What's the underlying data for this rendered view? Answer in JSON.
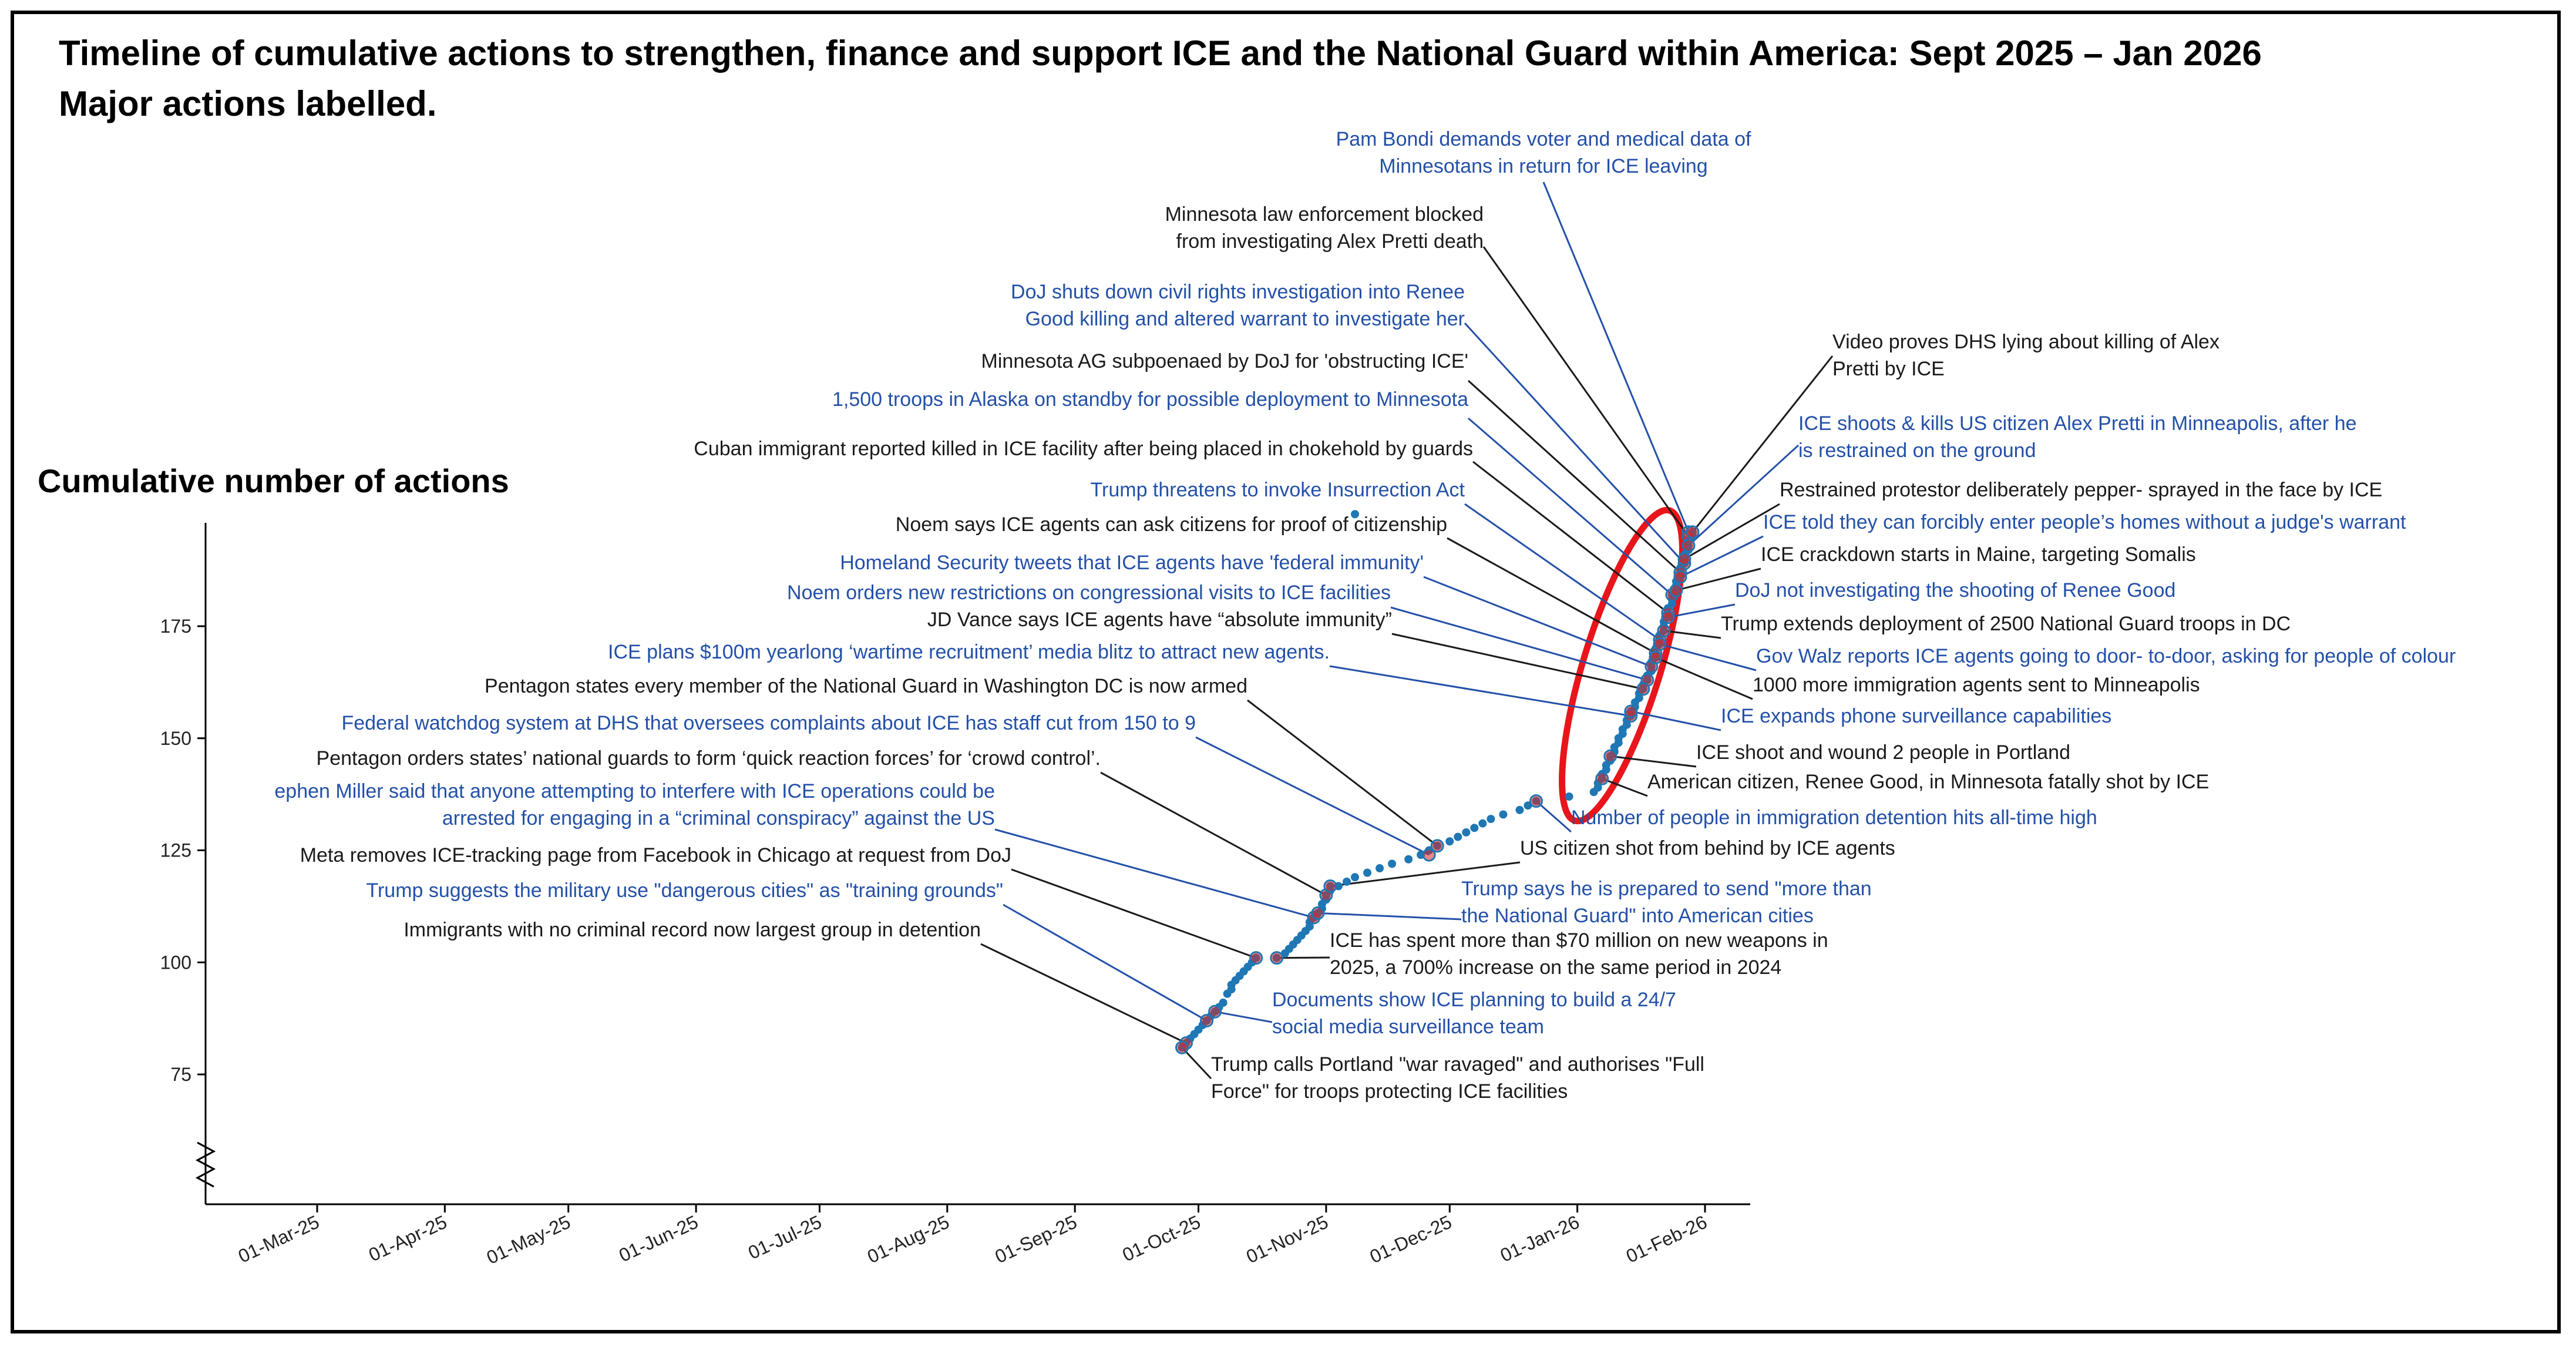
{
  "title_line1": "Timeline of cumulative actions to strengthen, finance and support ICE and the National Guard within America: Sept 2025 – Jan 2026",
  "title_line2": "Major actions labelled.",
  "colors": {
    "point": "#1f77b4",
    "major_point": "#d62728",
    "ellipse": "#e8151b",
    "black_text": "#1a1a1a",
    "blue_text": "#2350a8"
  },
  "chart_data": {
    "type": "scatter",
    "ylabel": "Cumulative number of actions",
    "xlabel": "",
    "y_ticks": [
      75,
      100,
      125,
      150,
      175
    ],
    "ylim": [
      47,
      200
    ],
    "x_ticks": [
      "01-Mar-25",
      "01-Apr-25",
      "01-May-25",
      "01-Jun-25",
      "01-Jul-25",
      "01-Aug-25",
      "01-Sep-25",
      "01-Oct-25",
      "01-Nov-25",
      "01-Dec-25",
      "01-Jan-26",
      "01-Feb-26"
    ],
    "y_axis_break": true,
    "highlight_ellipse": "Jan 2026 cluster",
    "points": [
      {
        "x": "2025-09-27",
        "y": 81
      },
      {
        "x": "2025-09-28",
        "y": 82
      },
      {
        "x": "2025-09-29",
        "y": 83
      },
      {
        "x": "2025-09-30",
        "y": 84
      },
      {
        "x": "2025-10-01",
        "y": 85
      },
      {
        "x": "2025-10-02",
        "y": 86
      },
      {
        "x": "2025-10-03",
        "y": 87
      },
      {
        "x": "2025-10-04",
        "y": 88
      },
      {
        "x": "2025-10-05",
        "y": 89
      },
      {
        "x": "2025-10-06",
        "y": 90
      },
      {
        "x": "2025-10-07",
        "y": 91
      },
      {
        "x": "2025-10-08",
        "y": 93
      },
      {
        "x": "2025-10-09",
        "y": 94
      },
      {
        "x": "2025-10-09",
        "y": 95
      },
      {
        "x": "2025-10-10",
        "y": 96
      },
      {
        "x": "2025-10-11",
        "y": 97
      },
      {
        "x": "2025-10-12",
        "y": 98
      },
      {
        "x": "2025-10-13",
        "y": 99
      },
      {
        "x": "2025-10-14",
        "y": 100
      },
      {
        "x": "2025-10-15",
        "y": 101
      },
      {
        "x": "2025-10-20",
        "y": 101
      },
      {
        "x": "2025-10-22",
        "y": 102
      },
      {
        "x": "2025-10-23",
        "y": 103
      },
      {
        "x": "2025-10-24",
        "y": 104
      },
      {
        "x": "2025-10-25",
        "y": 105
      },
      {
        "x": "2025-10-26",
        "y": 106
      },
      {
        "x": "2025-10-27",
        "y": 107
      },
      {
        "x": "2025-10-28",
        "y": 108
      },
      {
        "x": "2025-10-28",
        "y": 109
      },
      {
        "x": "2025-10-29",
        "y": 110
      },
      {
        "x": "2025-10-30",
        "y": 111
      },
      {
        "x": "2025-10-31",
        "y": 112
      },
      {
        "x": "2025-10-31",
        "y": 113
      },
      {
        "x": "2025-11-01",
        "y": 114
      },
      {
        "x": "2025-11-01",
        "y": 115
      },
      {
        "x": "2025-11-02",
        "y": 116
      },
      {
        "x": "2025-11-02",
        "y": 117
      },
      {
        "x": "2025-11-04",
        "y": 117
      },
      {
        "x": "2025-11-06",
        "y": 118
      },
      {
        "x": "2025-11-08",
        "y": 119
      },
      {
        "x": "2025-11-11",
        "y": 120
      },
      {
        "x": "2025-11-14",
        "y": 121
      },
      {
        "x": "2025-11-17",
        "y": 122
      },
      {
        "x": "2025-11-21",
        "y": 123
      },
      {
        "x": "2025-11-24",
        "y": 124
      },
      {
        "x": "2025-11-26",
        "y": 125
      },
      {
        "x": "2025-11-28",
        "y": 126
      },
      {
        "x": "2025-12-01",
        "y": 127
      },
      {
        "x": "2025-12-03",
        "y": 128
      },
      {
        "x": "2025-12-05",
        "y": 129
      },
      {
        "x": "2025-12-07",
        "y": 130
      },
      {
        "x": "2025-12-09",
        "y": 131
      },
      {
        "x": "2025-12-11",
        "y": 132
      },
      {
        "x": "2025-12-14",
        "y": 133
      },
      {
        "x": "2025-12-18",
        "y": 134
      },
      {
        "x": "2025-12-20",
        "y": 135
      },
      {
        "x": "2025-12-22",
        "y": 136
      },
      {
        "x": "2025-12-30",
        "y": 137
      },
      {
        "x": "2026-01-05",
        "y": 138
      },
      {
        "x": "2026-01-06",
        "y": 139
      },
      {
        "x": "2026-01-06",
        "y": 140
      },
      {
        "x": "2026-01-07",
        "y": 141
      },
      {
        "x": "2026-01-07",
        "y": 142
      },
      {
        "x": "2026-01-08",
        "y": 143
      },
      {
        "x": "2026-01-08",
        "y": 144
      },
      {
        "x": "2026-01-09",
        "y": 145
      },
      {
        "x": "2026-01-09",
        "y": 146
      },
      {
        "x": "2026-01-10",
        "y": 147
      },
      {
        "x": "2026-01-10",
        "y": 148
      },
      {
        "x": "2026-01-11",
        "y": 149
      },
      {
        "x": "2026-01-11",
        "y": 150
      },
      {
        "x": "2026-01-12",
        "y": 151
      },
      {
        "x": "2026-01-12",
        "y": 152
      },
      {
        "x": "2026-01-13",
        "y": 153
      },
      {
        "x": "2026-01-13",
        "y": 154
      },
      {
        "x": "2026-01-14",
        "y": 155
      },
      {
        "x": "2026-01-14",
        "y": 156
      },
      {
        "x": "2026-01-15",
        "y": 157
      },
      {
        "x": "2026-01-15",
        "y": 158
      },
      {
        "x": "2026-01-16",
        "y": 159
      },
      {
        "x": "2026-01-16",
        "y": 160
      },
      {
        "x": "2026-01-17",
        "y": 161
      },
      {
        "x": "2026-01-17",
        "y": 162
      },
      {
        "x": "2026-01-18",
        "y": 163
      },
      {
        "x": "2026-01-18",
        "y": 164
      },
      {
        "x": "2026-01-19",
        "y": 165
      },
      {
        "x": "2026-01-19",
        "y": 166
      },
      {
        "x": "2026-01-19",
        "y": 167
      },
      {
        "x": "2026-01-20",
        "y": 168
      },
      {
        "x": "2026-01-20",
        "y": 169
      },
      {
        "x": "2026-01-20",
        "y": 170
      },
      {
        "x": "2026-01-21",
        "y": 171
      },
      {
        "x": "2026-01-21",
        "y": 172
      },
      {
        "x": "2026-01-21",
        "y": 173
      },
      {
        "x": "2026-01-22",
        "y": 174
      },
      {
        "x": "2026-01-22",
        "y": 175
      },
      {
        "x": "2026-01-22",
        "y": 176
      },
      {
        "x": "2026-01-23",
        "y": 177
      },
      {
        "x": "2026-01-23",
        "y": 178
      },
      {
        "x": "2026-01-23",
        "y": 179
      },
      {
        "x": "2026-01-24",
        "y": 180
      },
      {
        "x": "2026-01-24",
        "y": 181
      },
      {
        "x": "2026-01-24",
        "y": 182
      },
      {
        "x": "2026-01-25",
        "y": 183
      },
      {
        "x": "2026-01-25",
        "y": 184
      },
      {
        "x": "2026-01-25",
        "y": 185
      },
      {
        "x": "2026-01-26",
        "y": 186
      },
      {
        "x": "2026-01-26",
        "y": 187
      },
      {
        "x": "2026-01-26",
        "y": 188
      },
      {
        "x": "2026-01-27",
        "y": 189
      },
      {
        "x": "2026-01-27",
        "y": 190
      },
      {
        "x": "2026-01-27",
        "y": 191
      },
      {
        "x": "2026-01-28",
        "y": 192
      },
      {
        "x": "2026-01-28",
        "y": 193
      },
      {
        "x": "2026-01-28",
        "y": 194
      },
      {
        "x": "2026-01-29",
        "y": 195
      },
      {
        "x": "2026-01-29",
        "y": 196
      },
      {
        "x": "2025-11-08",
        "y": 200
      }
    ],
    "annotations": [
      {
        "text": [
          "Pam Bondi demands voter and medical data of",
          "Minnesotans in return for ICE leaving"
        ],
        "color": "blue",
        "x": "2026-01-28",
        "y": 196
      },
      {
        "text": [
          "Minnesota law enforcement blocked",
          "from investigating Alex Pretti death"
        ],
        "color": "black",
        "x": "2026-01-28",
        "y": 195
      },
      {
        "text": [
          "DoJ shuts down civil rights investigation into Renee",
          "Good killing and altered warrant to investigate her"
        ],
        "color": "blue",
        "x": "2026-01-27",
        "y": 189
      },
      {
        "text": [
          "Minnesota AG subpoenaed by DoJ for 'obstructing ICE'"
        ],
        "color": "black",
        "x": "2026-01-26",
        "y": 187
      },
      {
        "text": [
          "1,500 troops in Alaska on standby for possible deployment to Minnesota"
        ],
        "color": "blue",
        "x": "2026-01-24",
        "y": 182
      },
      {
        "text": [
          "Cuban immigrant reported killed in ICE facility after being placed in chokehold by guards"
        ],
        "color": "black",
        "x": "2026-01-23",
        "y": 178
      },
      {
        "text": [
          "Trump threatens to invoke Insurrection Act"
        ],
        "color": "blue",
        "x": "2026-01-21",
        "y": 172
      },
      {
        "text": [
          "Noem says ICE agents can ask citizens for proof of citizenship"
        ],
        "color": "black",
        "x": "2026-01-20",
        "y": 169
      },
      {
        "text": [
          "Homeland Security tweets that ICE agents have 'federal immunity'"
        ],
        "color": "blue",
        "x": "2026-01-19",
        "y": 166
      },
      {
        "text": [
          "Noem orders new restrictions on congressional visits to ICE facilities"
        ],
        "color": "blue",
        "x": "2026-01-18",
        "y": 163
      },
      {
        "text": [
          "JD Vance says ICE agents have “absolute immunity”"
        ],
        "color": "black",
        "x": "2026-01-17",
        "y": 161
      },
      {
        "text": [
          "ICE plans $100m yearlong ‘wartime recruitment’ media blitz to attract new agents."
        ],
        "color": "blue",
        "x": "2026-01-14",
        "y": 155
      },
      {
        "text": [
          "Pentagon states every member of the National Guard in Washington DC is now armed"
        ],
        "color": "black",
        "x": "2025-11-28",
        "y": 126
      },
      {
        "text": [
          "Federal watchdog system at DHS that oversees complaints about ICE has staff cut from 150 to 9"
        ],
        "color": "blue",
        "x": "2025-11-26",
        "y": 124
      },
      {
        "text": [
          "Pentagon orders states’ national guards to form ‘quick reaction forces’ for ‘crowd control’."
        ],
        "color": "black",
        "x": "2025-11-01",
        "y": 115
      },
      {
        "text": [
          "ephen Miller said that anyone attempting to interfere with ICE operations could be",
          "arrested for engaging in a “criminal conspiracy” against the US"
        ],
        "color": "blue",
        "x": "2025-10-29",
        "y": 110
      },
      {
        "text": [
          "Meta removes ICE-tracking page from Facebook in Chicago at request from DoJ"
        ],
        "color": "black",
        "x": "2025-10-15",
        "y": 101
      },
      {
        "text": [
          "Trump suggests  the military use \"dangerous cities\" as \"training grounds\""
        ],
        "color": "blue",
        "x": "2025-10-03",
        "y": 87
      },
      {
        "text": [
          "Immigrants with no criminal record now largest group in detention"
        ],
        "color": "black",
        "x": "2025-09-28",
        "y": 82
      },
      {
        "text": [
          "Video proves DHS lying about killing of Alex",
          "Pretti by ICE"
        ],
        "color": "black",
        "x": "2026-01-29",
        "y": 196
      },
      {
        "text": [
          "ICE shoots & kills US citizen Alex Pretti in Minneapolis, after he",
          "is restrained on the ground"
        ],
        "color": "blue",
        "x": "2026-01-28",
        "y": 193
      },
      {
        "text": [
          "Restrained protestor  deliberately pepper- sprayed in the face by ICE"
        ],
        "color": "black",
        "x": "2026-01-27",
        "y": 190
      },
      {
        "text": [
          "ICE told they can forcibly enter people’s homes without a judge's warrant"
        ],
        "color": "blue",
        "x": "2026-01-26",
        "y": 186
      },
      {
        "text": [
          "ICE crackdown starts in Maine, targeting Somalis"
        ],
        "color": "black",
        "x": "2026-01-25",
        "y": 183
      },
      {
        "text": [
          "DoJ not investigating the shooting of Renee Good"
        ],
        "color": "blue",
        "x": "2026-01-23",
        "y": 177
      },
      {
        "text": [
          "Trump extends deployment of 2500 National Guard troops in DC"
        ],
        "color": "black",
        "x": "2026-01-22",
        "y": 174
      },
      {
        "text": [
          "Gov Walz reports ICE agents going to door- to-door, asking for people of colour"
        ],
        "color": "blue",
        "x": "2026-01-21",
        "y": 171
      },
      {
        "text": [
          "1000 more immigration agents sent to Minneapolis"
        ],
        "color": "black",
        "x": "2026-01-20",
        "y": 168
      },
      {
        "text": [
          "ICE expands phone surveillance capabilities"
        ],
        "color": "blue",
        "x": "2026-01-14",
        "y": 156
      },
      {
        "text": [
          "ICE shoot and wound 2 people in Portland"
        ],
        "color": "black",
        "x": "2026-01-09",
        "y": 146
      },
      {
        "text": [
          "American citizen, Renee Good, in Minnesota fatally shot by ICE"
        ],
        "color": "black",
        "x": "2026-01-07",
        "y": 141
      },
      {
        "text": [
          "Number of people in immigration detention hits all-time high"
        ],
        "color": "blue",
        "x": "2025-12-22",
        "y": 136
      },
      {
        "text": [
          "US citizen shot from behind by ICE agents"
        ],
        "color": "black",
        "x": "2025-11-02",
        "y": 117
      },
      {
        "text": [
          "Trump says he is prepared to send \"more than",
          "the National Guard\" into American cities"
        ],
        "color": "blue",
        "x": "2025-10-30",
        "y": 111
      },
      {
        "text": [
          "ICE has spent more than $70 million on new weapons in",
          "2025, a 700% increase on the same period in 2024"
        ],
        "color": "black",
        "x": "2025-10-20",
        "y": 101
      },
      {
        "text": [
          "Documents show ICE planning to build a 24/7",
          "social media surveillance team"
        ],
        "color": "blue",
        "x": "2025-10-05",
        "y": 89
      },
      {
        "text": [
          "Trump calls Portland \"war ravaged\" and authorises \"Full",
          "Force\" for troops protecting ICE facilities"
        ],
        "color": "black",
        "x": "2025-09-27",
        "y": 81
      }
    ]
  }
}
